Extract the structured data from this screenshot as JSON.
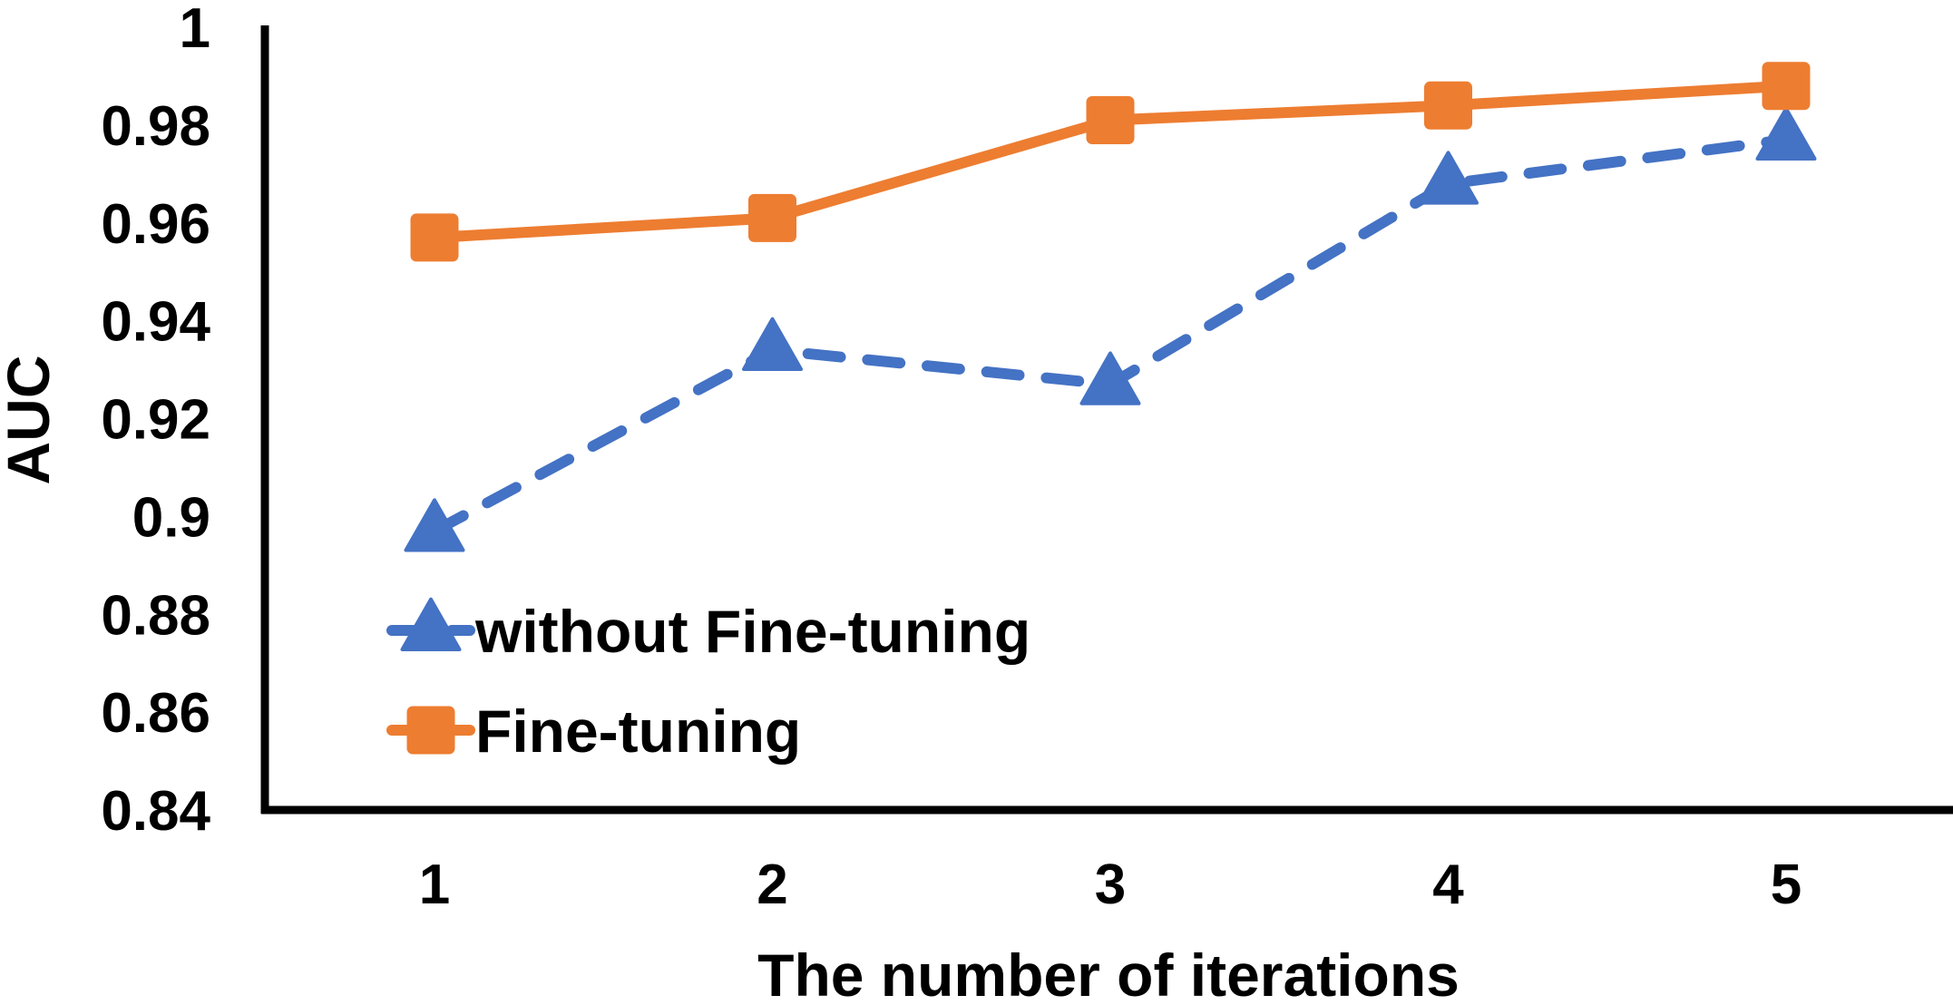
{
  "chart_data": {
    "type": "line",
    "xlabel": "The number of iterations",
    "ylabel": "AUC",
    "categories": [
      "1",
      "2",
      "3",
      "4",
      "5"
    ],
    "ylim": [
      0.84,
      1
    ],
    "yticks": [
      "0.84",
      "0.86",
      "0.88",
      "0.9",
      "0.92",
      "0.94",
      "0.96",
      "0.98",
      "1"
    ],
    "grid": false,
    "legend_position": "bottom-left",
    "series": [
      {
        "name": "without Fine-tuning",
        "values": [
          0.897,
          0.934,
          0.927,
          0.968,
          0.977
        ],
        "color": "#4472C4",
        "line_style": "dashed",
        "marker": "triangle"
      },
      {
        "name": "Fine-tuning",
        "values": [
          0.957,
          0.961,
          0.981,
          0.984,
          0.988
        ],
        "color": "#ED7D31",
        "line_style": "solid",
        "marker": "square"
      }
    ]
  }
}
